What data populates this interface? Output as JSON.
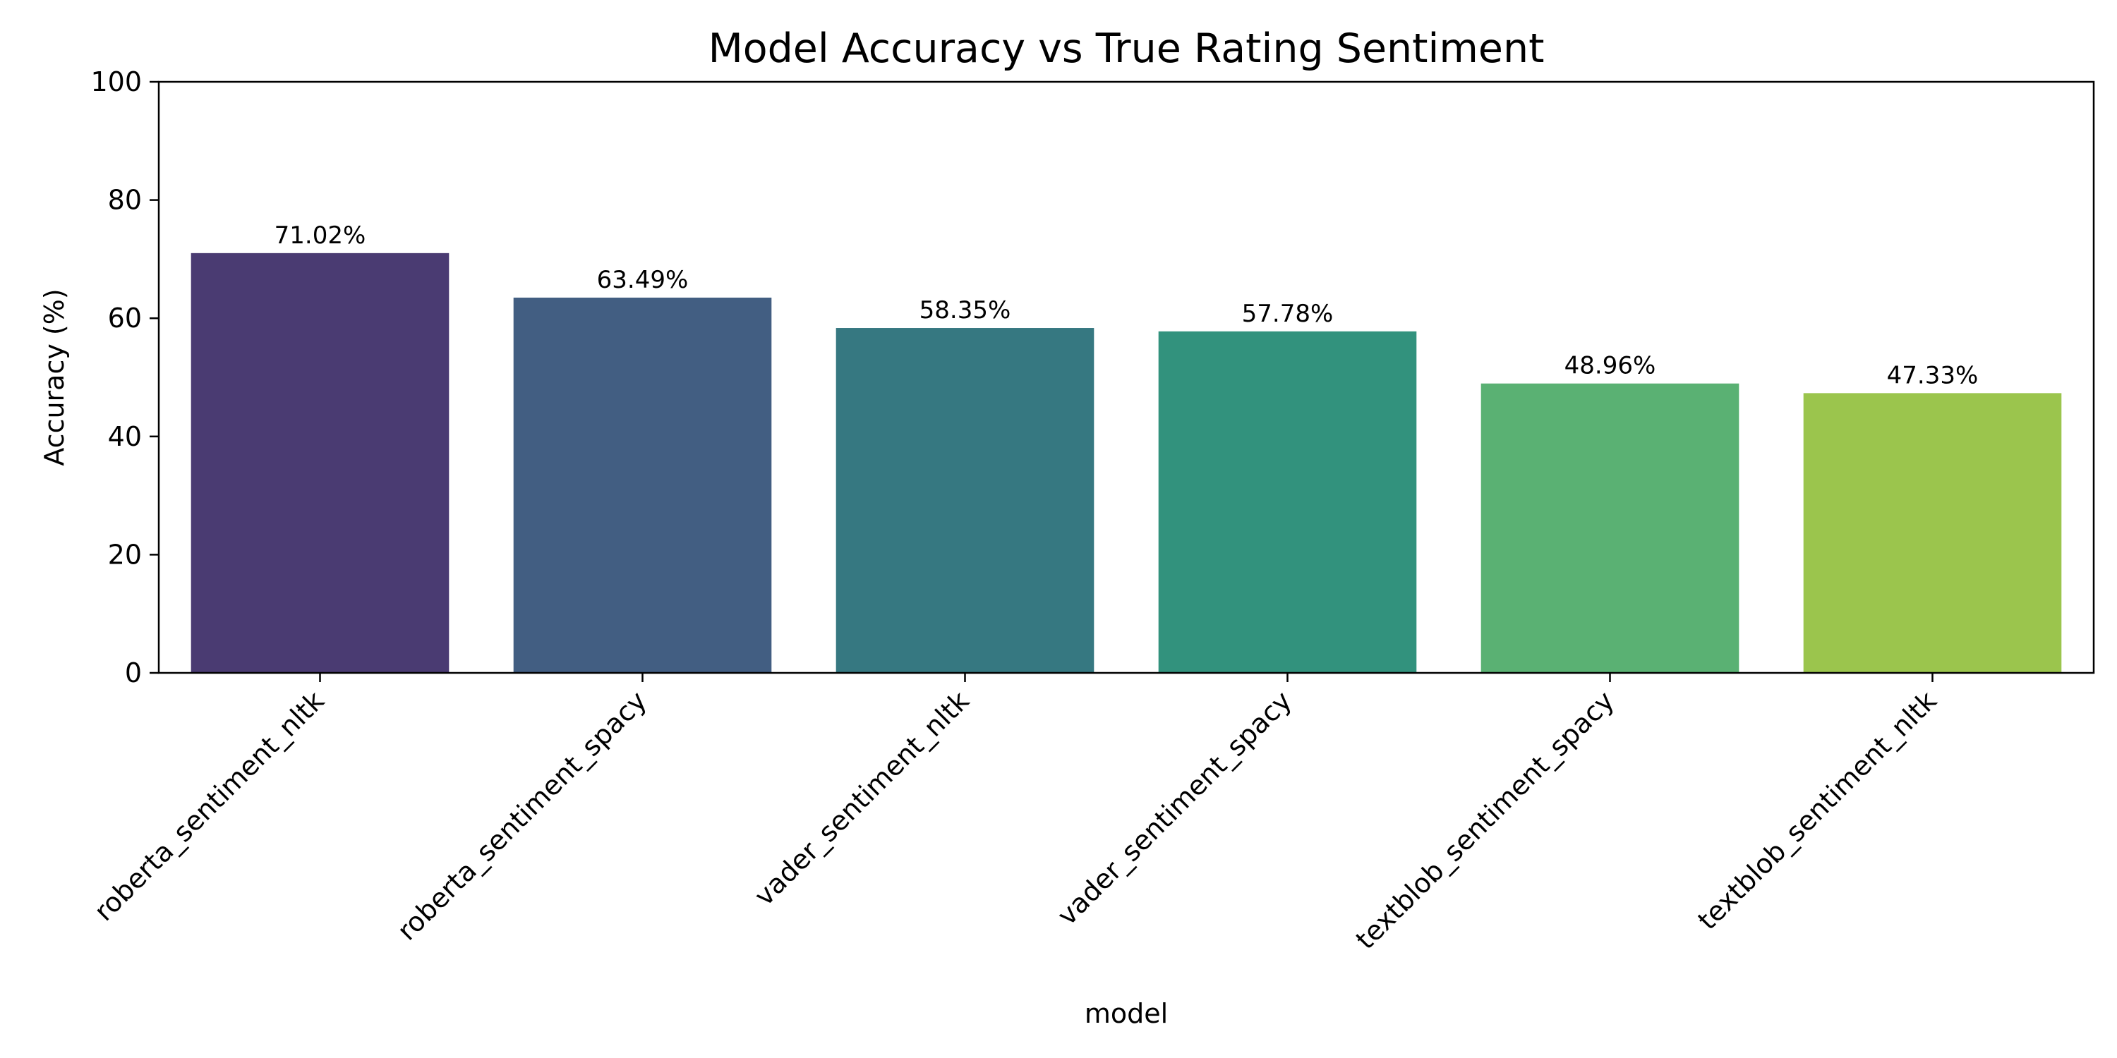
{
  "chart_data": {
    "type": "bar",
    "title": "Model Accuracy vs True Rating Sentiment",
    "xlabel": "model",
    "ylabel": "Accuracy (%)",
    "ylim": [
      0,
      100
    ],
    "yticks": [
      "0",
      "20",
      "40",
      "60",
      "80",
      "100"
    ],
    "grid": false,
    "categories": [
      "roberta_sentiment_nltk",
      "roberta_sentiment_spacy",
      "vader_sentiment_nltk",
      "vader_sentiment_spacy",
      "textblob_sentiment_spacy",
      "textblob_sentiment_nltk"
    ],
    "values": [
      71.02,
      63.49,
      58.35,
      57.78,
      48.96,
      47.33
    ],
    "value_labels": [
      "71.02%",
      "63.49%",
      "58.35%",
      "57.78%",
      "48.96%",
      "47.33%"
    ],
    "colors": [
      "#4a3b72",
      "#425e82",
      "#367881",
      "#32927d",
      "#5ab173",
      "#9bc54d"
    ]
  }
}
